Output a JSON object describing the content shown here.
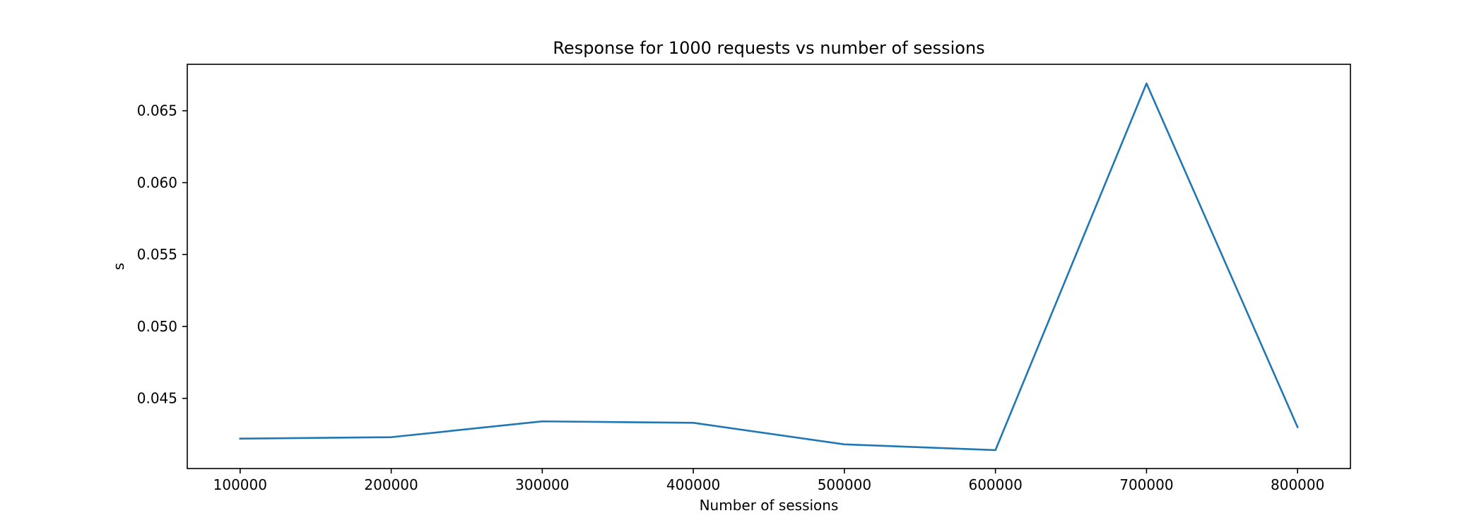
{
  "chart_data": {
    "type": "line",
    "title": "Response for 1000 requests vs number of sessions",
    "xlabel": "Number of sessions",
    "ylabel": "s",
    "x": [
      100000,
      200000,
      300000,
      400000,
      500000,
      600000,
      700000,
      800000
    ],
    "x_tick_labels": [
      "100000",
      "200000",
      "300000",
      "400000",
      "500000",
      "600000",
      "700000",
      "800000"
    ],
    "series": [
      {
        "values": [
          0.0422,
          0.0423,
          0.0434,
          0.0433,
          0.0418,
          0.0414,
          0.0669,
          0.043
        ]
      }
    ],
    "y_ticks": [
      0.045,
      0.05,
      0.055,
      0.06,
      0.065
    ],
    "y_tick_labels": [
      "0.045",
      "0.050",
      "0.055",
      "0.060",
      "0.065"
    ],
    "xlim": [
      65000,
      835000
    ],
    "ylim": [
      0.04012,
      0.06823
    ],
    "grid": false,
    "line_color": "#1f77b4"
  }
}
